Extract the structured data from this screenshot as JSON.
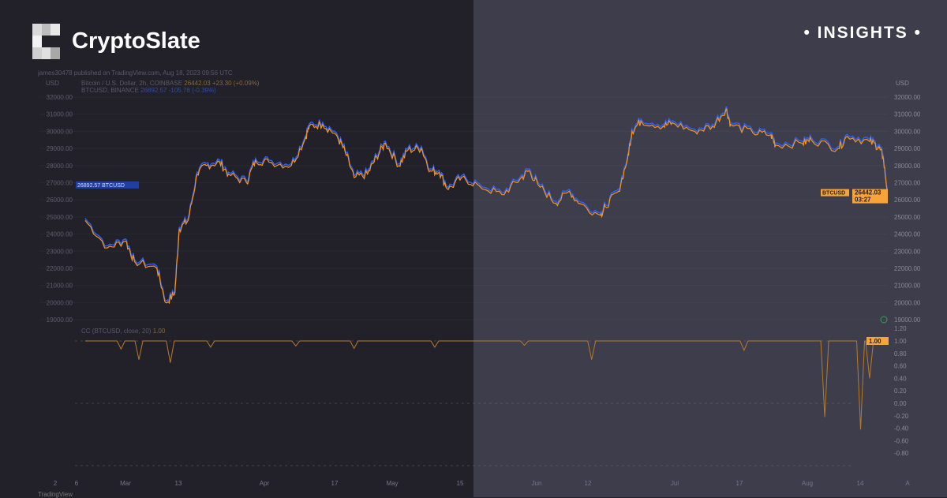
{
  "brand": {
    "name": "CryptoSlate",
    "tag": "INSIGHTS"
  },
  "published": "james30478 published on TradingView.com, Aug 18, 2023 09:56 UTC",
  "legend": {
    "line1_label": "Bitcoin / U.S. Dollar, 2h, COINBASE",
    "line1_value": "26442.03  +23.30 (+0.09%)",
    "line2_label": "BTCUSD, BINANCE",
    "line2_value": "26892.57  -105.78 (-0.39%)",
    "indicator_label": "CC (BTCUSD, close, 20)",
    "indicator_value": "1.00"
  },
  "footer": "TradingView",
  "colors": {
    "orange": "#f7931a",
    "blue": "#2962ff",
    "left_bg": "#222129",
    "right_bg": "#3e3d4b"
  },
  "chart_data": {
    "type": "line",
    "price_pane": {
      "unit": "USD",
      "ylim": [
        19000,
        32000
      ],
      "yticks": [
        "32000.00",
        "31000.00",
        "30000.00",
        "29000.00",
        "28000.00",
        "27000.00",
        "26000.00",
        "25000.00",
        "24000.00",
        "23000.00",
        "22000.00",
        "21000.00",
        "20000.00",
        "19000.00"
      ],
      "series": [
        {
          "name": "Bitcoin / U.S. Dollar, 2h, COINBASE",
          "color": "#f7931a",
          "last_label": "BTCUSD",
          "last_value": "26442.03",
          "countdown": "03:27"
        },
        {
          "name": "BTCUSD, BINANCE",
          "color": "#2962ff",
          "last_label": "BTCUSD",
          "last_value": "26892.57"
        }
      ],
      "x": [
        "2023-02-20",
        "2023-02-25",
        "2023-03-01",
        "2023-03-03",
        "2023-03-08",
        "2023-03-10",
        "2023-03-12",
        "2023-03-13",
        "2023-03-15",
        "2023-03-17",
        "2023-03-19",
        "2023-03-22",
        "2023-03-24",
        "2023-03-28",
        "2023-03-30",
        "2023-04-02",
        "2023-04-07",
        "2023-04-10",
        "2023-04-11",
        "2023-04-14",
        "2023-04-17",
        "2023-04-19",
        "2023-04-21",
        "2023-04-24",
        "2023-04-26",
        "2023-04-28",
        "2023-05-01",
        "2023-05-03",
        "2023-05-06",
        "2023-05-08",
        "2023-05-10",
        "2023-05-12",
        "2023-05-15",
        "2023-05-19",
        "2023-05-24",
        "2023-05-28",
        "2023-05-30",
        "2023-06-01",
        "2023-06-05",
        "2023-06-08",
        "2023-06-10",
        "2023-06-15",
        "2023-06-16",
        "2023-06-19",
        "2023-06-21",
        "2023-06-22",
        "2023-06-24",
        "2023-06-29",
        "2023-07-01",
        "2023-07-06",
        "2023-07-10",
        "2023-07-13",
        "2023-07-14",
        "2023-07-19",
        "2023-07-23",
        "2023-07-24",
        "2023-07-30",
        "2023-08-01",
        "2023-08-07",
        "2023-08-09",
        "2023-08-14",
        "2023-08-16",
        "2023-08-17",
        "2023-08-18"
      ],
      "values": [
        24800,
        23200,
        23600,
        22400,
        22000,
        20000,
        20500,
        24300,
        24800,
        27500,
        28000,
        28200,
        27500,
        27000,
        28300,
        28200,
        28000,
        29500,
        30300,
        30400,
        29800,
        28800,
        27300,
        27500,
        28500,
        29300,
        28000,
        28900,
        29000,
        27700,
        27600,
        26600,
        27300,
        26800,
        26300,
        27200,
        27700,
        26900,
        25800,
        26500,
        25800,
        25100,
        25600,
        26500,
        28400,
        30000,
        30600,
        30300,
        30500,
        30000,
        30300,
        31300,
        30400,
        29900,
        29800,
        29200,
        29300,
        29500,
        29000,
        29700,
        29400,
        29100,
        28500,
        26442
      ]
    },
    "indicator_pane": {
      "name": "CC (BTCUSD, close, 20)",
      "ylim": [
        -1.0,
        1.2
      ],
      "yticks": [
        "1.20",
        "1.00",
        "0.80",
        "0.60",
        "0.40",
        "0.20",
        "0.00",
        "-0.20",
        "-0.40",
        "-0.60",
        "-0.80"
      ],
      "last_value": "1.00",
      "baseline": 1.0,
      "dips": [
        {
          "date": "2023-02-28",
          "value": 0.87
        },
        {
          "date": "2023-03-04",
          "value": 0.7
        },
        {
          "date": "2023-03-11",
          "value": 0.65
        },
        {
          "date": "2023-03-20",
          "value": 0.9
        },
        {
          "date": "2023-04-08",
          "value": 0.92
        },
        {
          "date": "2023-04-21",
          "value": 0.88
        },
        {
          "date": "2023-05-09",
          "value": 0.9
        },
        {
          "date": "2023-05-29",
          "value": 0.93
        },
        {
          "date": "2023-06-13",
          "value": 0.7
        },
        {
          "date": "2023-07-17",
          "value": 0.85
        },
        {
          "date": "2023-08-04",
          "value": -0.22
        },
        {
          "date": "2023-08-12",
          "value": -0.42
        },
        {
          "date": "2023-08-14",
          "value": 0.4
        }
      ]
    },
    "xticks": [
      "2",
      "6",
      "Mar",
      "13",
      "Apr",
      "17",
      "May",
      "15",
      "Jun",
      "12",
      "Jul",
      "17",
      "Aug",
      "14",
      "A"
    ],
    "grid": true
  }
}
